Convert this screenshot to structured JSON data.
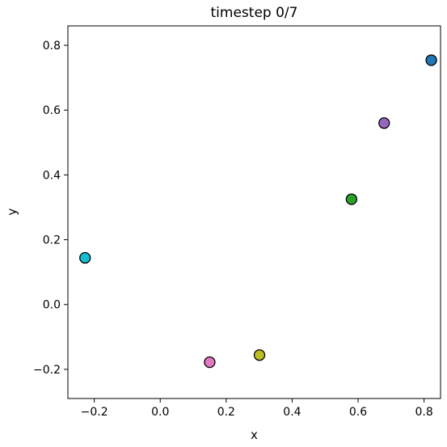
{
  "chart_data": {
    "type": "scatter",
    "title": "timestep 0/7",
    "xlabel": "x",
    "ylabel": "y",
    "xlim": [
      -0.28,
      0.85
    ],
    "ylim": [
      -0.29,
      0.86
    ],
    "xticks": [
      -0.2,
      0.0,
      0.2,
      0.4,
      0.6,
      0.8
    ],
    "xtick_labels": [
      "−0.2",
      "0.0",
      "0.2",
      "0.4",
      "0.6",
      "0.8"
    ],
    "yticks": [
      -0.2,
      0.0,
      0.2,
      0.4,
      0.6,
      0.8
    ],
    "ytick_labels": [
      "−0.2",
      "0.0",
      "0.2",
      "0.4",
      "0.6",
      "0.8"
    ],
    "grid": false,
    "points": [
      {
        "x": 0.822,
        "y": 0.754,
        "color": "#1f77b4"
      },
      {
        "x": 0.679,
        "y": 0.56,
        "color": "#9467bd"
      },
      {
        "x": 0.58,
        "y": 0.325,
        "color": "#2ca02c"
      },
      {
        "x": -0.228,
        "y": 0.144,
        "color": "#17becf"
      },
      {
        "x": 0.301,
        "y": -0.156,
        "color": "#bcbd22"
      },
      {
        "x": 0.15,
        "y": -0.178,
        "color": "#e377c2"
      }
    ]
  }
}
